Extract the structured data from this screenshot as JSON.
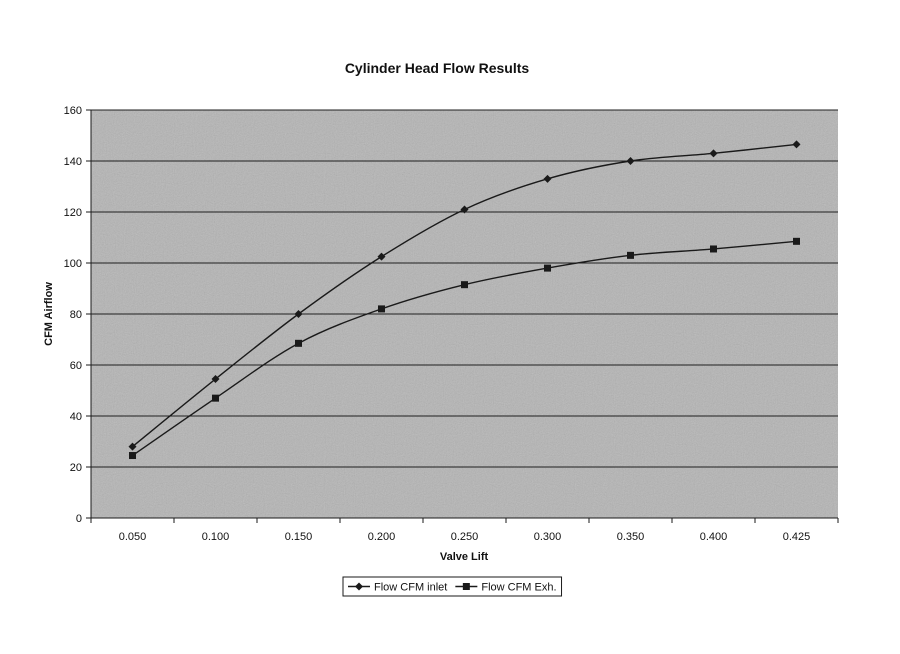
{
  "chart_data": {
    "type": "line",
    "title": "Cylinder Head Flow Results",
    "xlabel": "Valve Lift",
    "ylabel": "CFM Airflow",
    "categories": [
      "0.050",
      "0.100",
      "0.150",
      "0.200",
      "0.250",
      "0.300",
      "0.350",
      "0.400",
      "0.425"
    ],
    "ylim": [
      0,
      160
    ],
    "yticks": [
      0,
      20,
      40,
      60,
      80,
      100,
      120,
      140,
      160
    ],
    "grid": "horizontal",
    "legend_position": "bottom",
    "series": [
      {
        "name": "Flow CFM inlet",
        "marker": "diamond",
        "values": [
          28,
          54.5,
          80,
          102.5,
          121,
          133,
          140,
          143,
          146.5
        ]
      },
      {
        "name": "Flow CFM Exh.",
        "marker": "square",
        "values": [
          24.5,
          47,
          68.5,
          82,
          91.5,
          98,
          103,
          105.5,
          108.5
        ]
      }
    ]
  },
  "colors": {
    "plot_background": "#b4b4b4",
    "line": "#1a1a1a",
    "grid": "#1f1f1f"
  }
}
